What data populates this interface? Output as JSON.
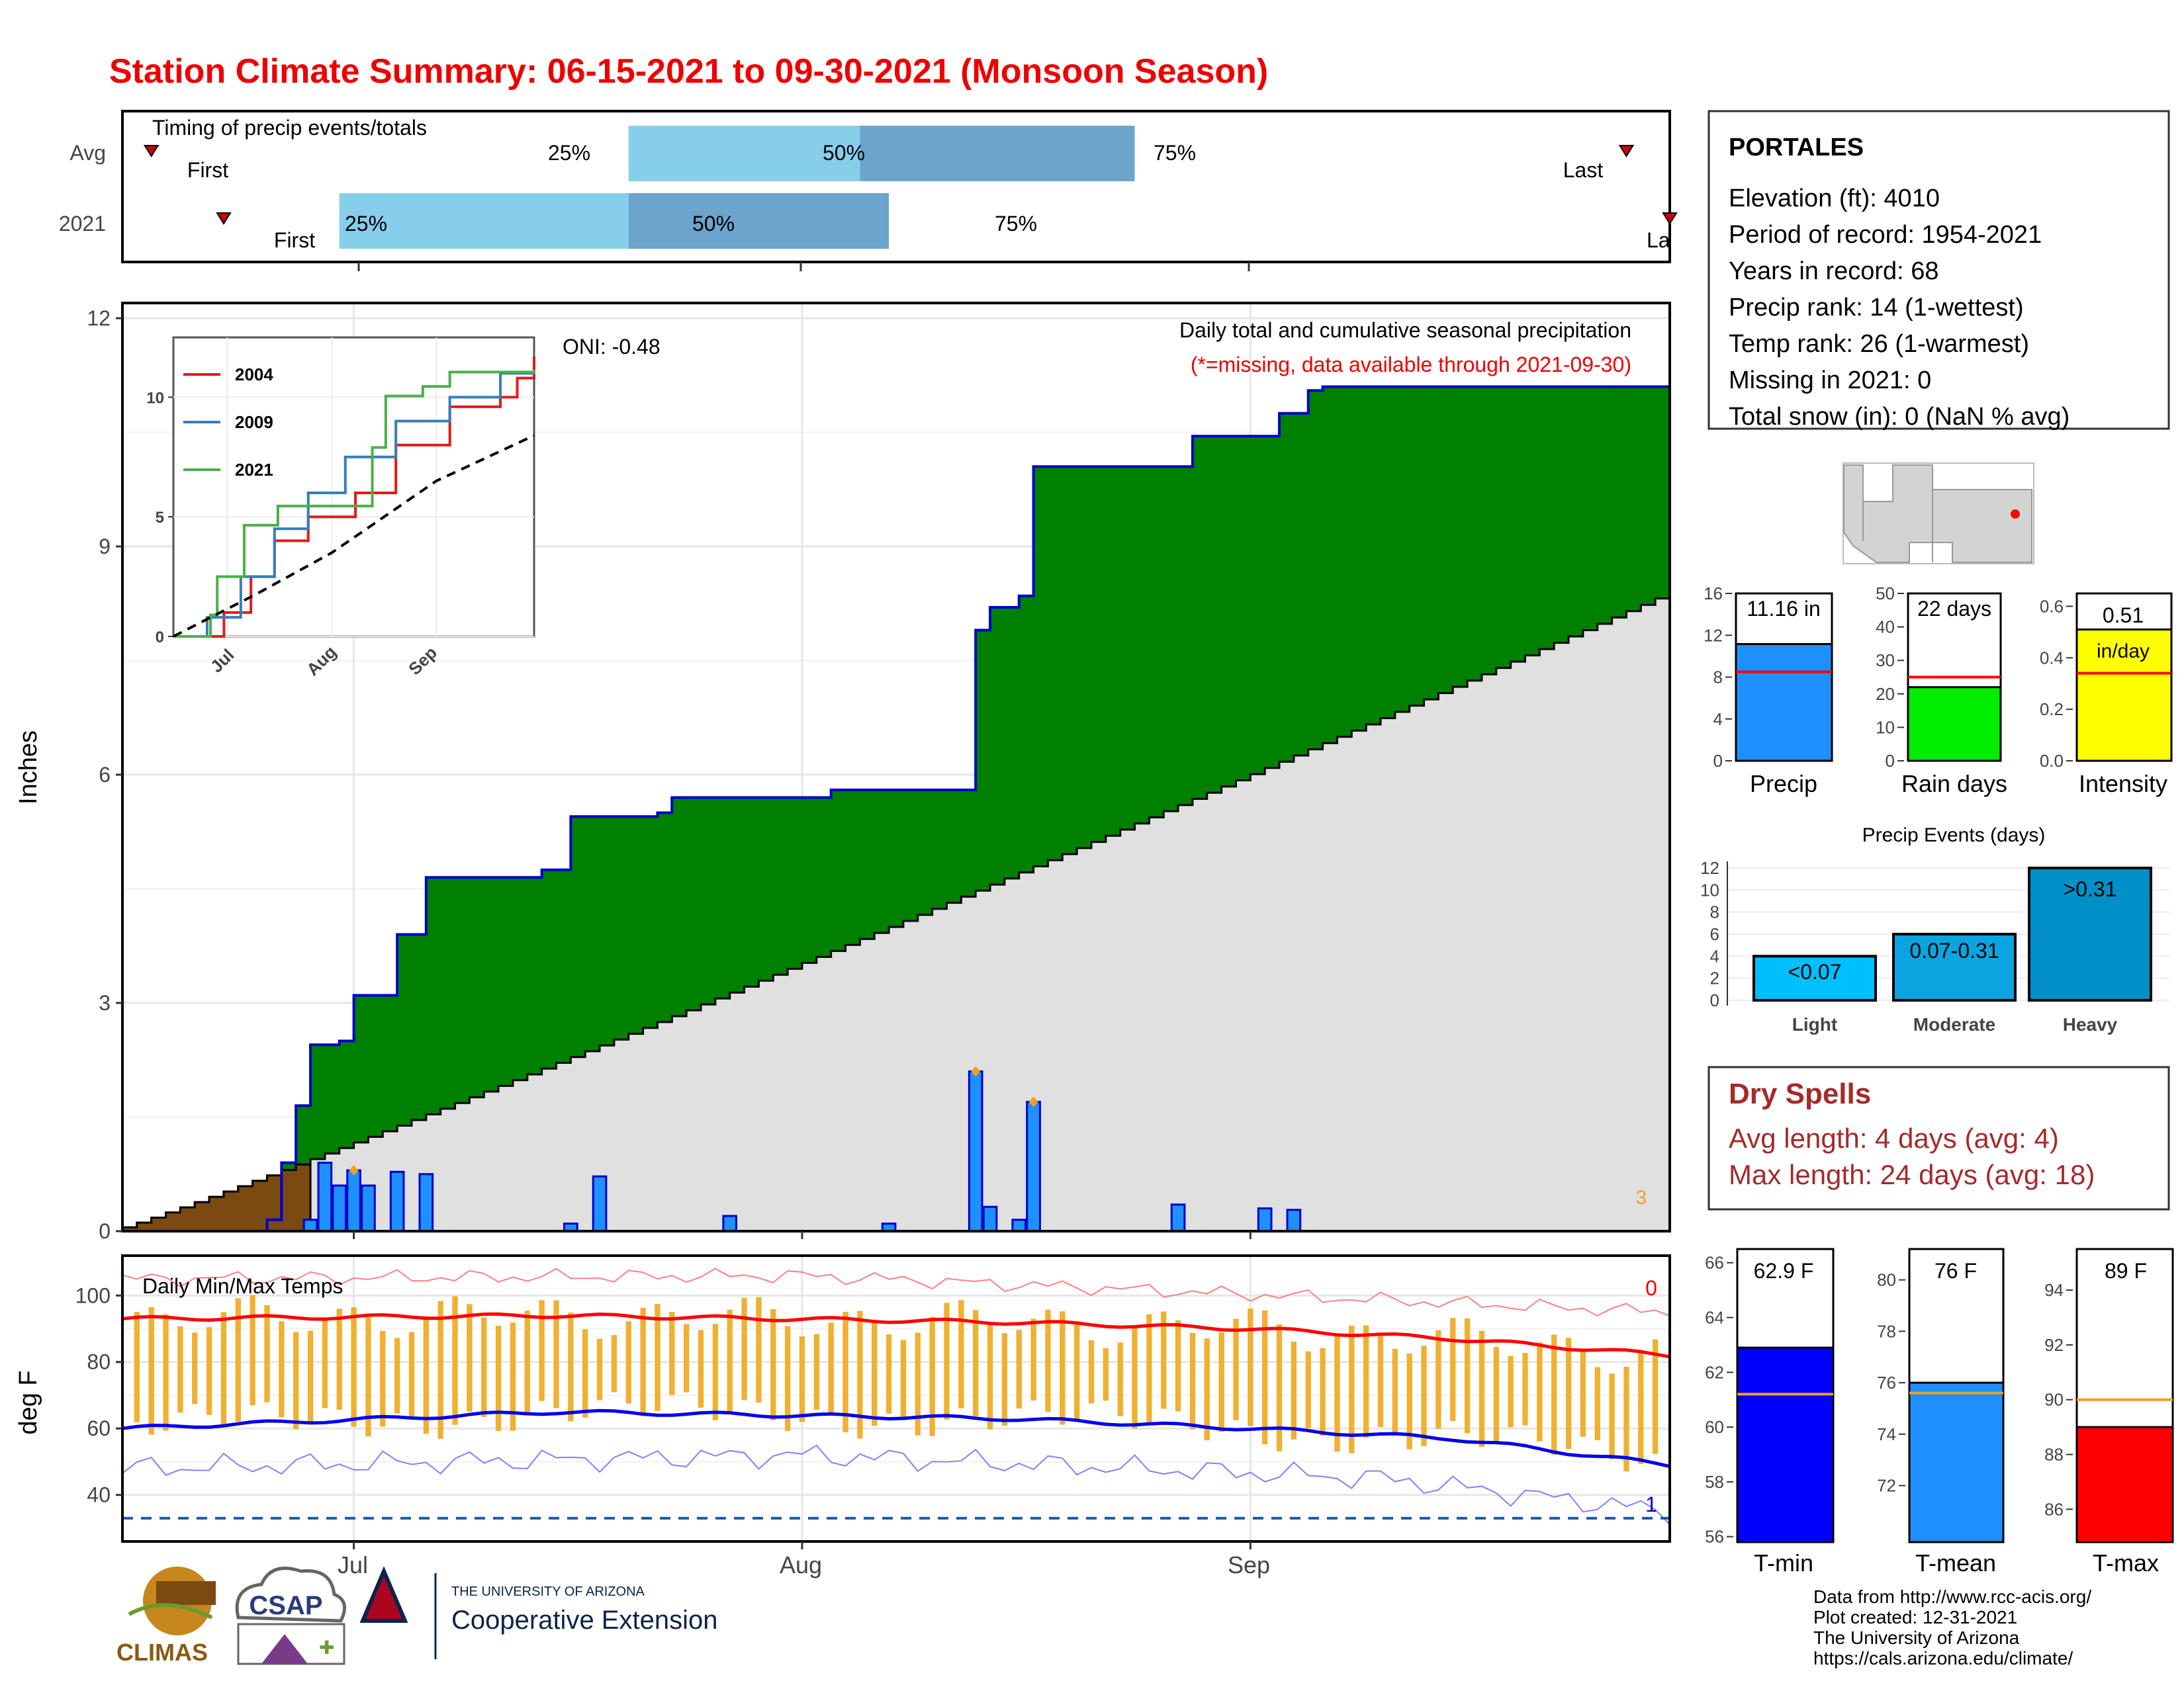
{
  "title": "Station Climate Summary: 06-15-2021 to 09-30-2021 (Monsoon Season)",
  "colors": {
    "title": "#ee0000",
    "precip_green": "#008000",
    "normal_gray": "#e0e0e0",
    "prior_brown": "#7a4a10",
    "bar_blue": "#1e90ff",
    "bar_outline": "#0000cc",
    "temp_bar": "#f0b030",
    "tmax_red": "#ff0000",
    "tmin_blue": "#0000ee",
    "light_blue": "#87ceeb",
    "steel_blue": "#6ba4cc",
    "dry_spell_text": "#a52a2a"
  },
  "timing": {
    "title": "Timing of precip events/totals",
    "rows": [
      {
        "label": "Avg",
        "first_label": "First",
        "last_label": "Last",
        "p25": "25%",
        "p50": "50%",
        "p75": "75%"
      },
      {
        "label": "2021",
        "first_label": "First",
        "last_label": "La",
        "p25": "25%",
        "p50": "50%",
        "p75": "75%"
      }
    ]
  },
  "station": {
    "name": "PORTALES",
    "lines": [
      "Elevation (ft): 4010",
      "Period of record: 1954-2021",
      "Years in record: 68",
      "Precip rank: 14 (1-wettest)",
      "Temp rank: 26 (1-warmest)",
      "Missing in 2021: 0",
      "Total snow (in): 0 (NaN % avg)"
    ]
  },
  "main_panel": {
    "ylabel": "Inches",
    "oni": "ONI: -0.48",
    "desc": "Daily total and cumulative seasonal precipitation",
    "missing_note": "(*=missing, data available through 2021-09-30)",
    "corner_count": "3",
    "x_ticks": [
      "Jul",
      "Aug",
      "Sep"
    ]
  },
  "inset": {
    "legend": [
      "2004",
      "2009",
      "2021"
    ],
    "colors": [
      "#e31a1c",
      "#377eb8",
      "#4daf4a"
    ],
    "x_ticks": [
      "Jul",
      "Aug",
      "Sep"
    ]
  },
  "temp_panel": {
    "title": "Daily Min/Max Temps",
    "ylabel": "deg F",
    "top_count": "0",
    "bottom_count": "1",
    "x_ticks": [
      "Jul",
      "Aug",
      "Sep"
    ]
  },
  "mini_bars": [
    {
      "label": "Precip",
      "value_label": "11.16 in",
      "unit_label": ""
    },
    {
      "label": "Rain days",
      "value_label": "22 days",
      "unit_label": ""
    },
    {
      "label": "Intensity",
      "value_label": "0.51",
      "unit_label": "in/day"
    }
  ],
  "events": {
    "title": "Precip Events (days)",
    "labels": [
      "Light",
      "Moderate",
      "Heavy"
    ],
    "value_labels": [
      "<0.07",
      "0.07-0.31",
      ">0.31"
    ]
  },
  "dry_spells": {
    "title": "Dry Spells",
    "avg": "Avg length: 4 days (avg: 4)",
    "max": "Max length: 24 days (avg: 18)"
  },
  "temp_bars": [
    {
      "label": "T-min",
      "value_label": "62.9 F"
    },
    {
      "label": "T-mean",
      "value_label": "76 F"
    },
    {
      "label": "T-max",
      "value_label": "89 F"
    }
  ],
  "credits": [
    "Data from http://www.rcc-acis.org/",
    "Plot created: 12-31-2021",
    "The University of Arizona",
    "https://cals.arizona.edu/climate/"
  ],
  "logos": {
    "climas": "CLIMAS",
    "csap": "CSAP",
    "ua_small": "THE UNIVERSITY OF ARIZONA",
    "ua_big": "Cooperative Extension"
  },
  "chart_data": [
    {
      "type": "bar",
      "name": "Timing of precip events/totals",
      "categories": [
        "Avg",
        "2021"
      ],
      "series": [
        {
          "name": "Avg",
          "first": "06-17",
          "p25": "07-20",
          "p50": "08-05",
          "p75": "08-24",
          "last": "09-27"
        },
        {
          "name": "2021",
          "first": "06-22",
          "p25": "06-30",
          "p50": "07-20",
          "p75": "08-07",
          "last": "09-30"
        }
      ]
    },
    {
      "type": "area",
      "name": "Daily total and cumulative seasonal precipitation",
      "ylabel": "Inches",
      "ylim": [
        0,
        12.2
      ],
      "xlim": [
        "06-15",
        "09-30"
      ],
      "y_ticks": [
        0,
        3,
        6,
        9,
        12
      ],
      "x_ticks": [
        "07-01",
        "08-01",
        "09-01"
      ],
      "cumulative_2021": [
        [
          "06-15",
          0
        ],
        [
          "06-25",
          0.15
        ],
        [
          "06-26",
          0.9
        ],
        [
          "06-27",
          1.65
        ],
        [
          "06-28",
          2.45
        ],
        [
          "06-30",
          2.5
        ],
        [
          "07-01",
          3.1
        ],
        [
          "07-03",
          3.1
        ],
        [
          "07-04",
          3.9
        ],
        [
          "07-06",
          4.65
        ],
        [
          "07-12",
          4.65
        ],
        [
          "07-14",
          4.75
        ],
        [
          "07-16",
          5.45
        ],
        [
          "07-22",
          5.5
        ],
        [
          "07-23",
          5.7
        ],
        [
          "07-25",
          5.7
        ],
        [
          "08-02",
          5.7
        ],
        [
          "08-03",
          5.8
        ],
        [
          "08-12",
          5.8
        ],
        [
          "08-13",
          7.9
        ],
        [
          "08-14",
          8.2
        ],
        [
          "08-16",
          8.35
        ],
        [
          "08-17",
          10.05
        ],
        [
          "08-27",
          10.05
        ],
        [
          "08-28",
          10.45
        ],
        [
          "09-02",
          10.45
        ],
        [
          "09-03",
          10.75
        ],
        [
          "09-05",
          11.05
        ],
        [
          "09-06",
          11.1
        ],
        [
          "09-30",
          11.16
        ]
      ],
      "cumulative_avg_end": 8.35,
      "daily_2021": [
        [
          "06-28",
          0.15
        ],
        [
          "06-29",
          0.9
        ],
        [
          "06-30",
          0.6
        ],
        [
          "07-01",
          0.8
        ],
        [
          "07-02",
          0.6
        ],
        [
          "07-04",
          0.78
        ],
        [
          "07-06",
          0.75
        ],
        [
          "07-16",
          0.1
        ],
        [
          "07-18",
          0.72
        ],
        [
          "07-27",
          0.2
        ],
        [
          "08-07",
          0.1
        ],
        [
          "08-13",
          2.1
        ],
        [
          "08-14",
          0.32
        ],
        [
          "08-16",
          0.15
        ],
        [
          "08-17",
          1.7
        ],
        [
          "08-27",
          0.35
        ],
        [
          "09-02",
          0.3
        ],
        [
          "09-04",
          0.28
        ]
      ],
      "extremes": [
        [
          "07-01",
          0.8
        ],
        [
          "08-13",
          2.1
        ],
        [
          "08-17",
          1.7
        ]
      ]
    },
    {
      "type": "line",
      "name": "inset cumulative precipitation",
      "series": [
        {
          "name": "2004",
          "x": [
            "06-15",
            "06-30",
            "07-08",
            "07-15",
            "07-25",
            "08-08",
            "08-20",
            "09-05",
            "09-20",
            "09-25",
            "09-30"
          ],
          "y": [
            0,
            1,
            2.5,
            4,
            5,
            6,
            8,
            9.6,
            10,
            10.8,
            11.7
          ]
        },
        {
          "name": "2009",
          "x": [
            "06-15",
            "06-25",
            "07-05",
            "07-15",
            "07-25",
            "08-05",
            "08-20",
            "09-05",
            "09-20",
            "09-30"
          ],
          "y": [
            0,
            0.8,
            2.5,
            4.5,
            6,
            7.5,
            9,
            10,
            11,
            11.1
          ]
        },
        {
          "name": "2021",
          "x": [
            "06-15",
            "06-26",
            "06-28",
            "07-06",
            "07-16",
            "08-13",
            "08-17",
            "08-28",
            "09-05",
            "09-30"
          ],
          "y": [
            0,
            0.9,
            2.5,
            4.65,
            5.45,
            7.9,
            10.05,
            10.45,
            11.05,
            11.16
          ]
        },
        {
          "x": [
            "06-15",
            "07-10",
            "08-01",
            "09-01",
            "09-30"
          ],
          "y": [
            0,
            1.8,
            3.5,
            6.5,
            8.4
          ]
        }
      ],
      "y_ticks": [
        0,
        5,
        10
      ]
    },
    {
      "type": "line",
      "name": "Daily Min/Max Temps",
      "ylabel": "deg F",
      "ylim": [
        26,
        112
      ],
      "y_ticks": [
        40,
        60,
        80,
        100
      ],
      "normal_max": [
        [
          "06-15",
          93
        ],
        [
          "07-15",
          94
        ],
        [
          "08-15",
          92
        ],
        [
          "09-01",
          90
        ],
        [
          "09-15",
          87
        ],
        [
          "09-30",
          82
        ]
      ],
      "normal_min": [
        [
          "06-15",
          60
        ],
        [
          "07-15",
          65
        ],
        [
          "08-15",
          63
        ],
        [
          "09-01",
          60
        ],
        [
          "09-15",
          57
        ],
        [
          "09-30",
          49
        ]
      ],
      "record_high_approx": [
        [
          "06-15",
          105
        ],
        [
          "08-01",
          106
        ],
        [
          "09-30",
          95
        ]
      ],
      "record_low_approx": [
        [
          "06-15",
          48
        ],
        [
          "08-01",
          52
        ],
        [
          "09-10",
          45
        ],
        [
          "09-30",
          35
        ]
      ],
      "freezing_line": 33
    },
    {
      "type": "bar",
      "name": "Precip",
      "categories": [
        "Precip"
      ],
      "values": [
        11.16
      ],
      "normal": [
        8.5
      ],
      "ylim": [
        0,
        16
      ],
      "y_ticks": [
        0,
        4,
        8,
        12,
        16
      ]
    },
    {
      "type": "bar",
      "name": "Rain days",
      "categories": [
        "Rain days"
      ],
      "values": [
        22
      ],
      "normal": [
        25
      ],
      "ylim": [
        0,
        50
      ],
      "y_ticks": [
        0,
        10,
        20,
        30,
        40,
        50
      ]
    },
    {
      "type": "bar",
      "name": "Intensity",
      "categories": [
        "Intensity"
      ],
      "values": [
        0.51
      ],
      "normal": [
        0.34
      ],
      "ylim": [
        0,
        0.65
      ],
      "y_ticks": [
        0.0,
        0.2,
        0.4,
        0.6
      ]
    },
    {
      "type": "bar",
      "name": "Precip Events (days)",
      "categories": [
        "Light",
        "Moderate",
        "Heavy"
      ],
      "values": [
        4,
        6,
        12
      ],
      "ylim": [
        0,
        12
      ],
      "y_ticks": [
        0,
        2,
        4,
        6,
        8,
        10,
        12
      ]
    },
    {
      "type": "bar",
      "name": "T-min",
      "categories": [
        "T-min"
      ],
      "values": [
        62.9
      ],
      "normal": [
        61.2
      ],
      "ylim": [
        55.8,
        66.5
      ],
      "y_ticks": [
        56,
        58,
        60,
        62,
        64,
        66
      ]
    },
    {
      "type": "bar",
      "name": "T-mean",
      "categories": [
        "T-mean"
      ],
      "values": [
        76
      ],
      "normal": [
        75.6
      ],
      "ylim": [
        69.8,
        81.2
      ],
      "y_ticks": [
        72,
        74,
        76,
        78,
        80
      ]
    },
    {
      "type": "bar",
      "name": "T-max",
      "categories": [
        "T-max"
      ],
      "values": [
        89
      ],
      "normal": [
        90
      ],
      "ylim": [
        84.8,
        95.5
      ],
      "y_ticks": [
        86,
        88,
        90,
        92,
        94
      ]
    }
  ]
}
